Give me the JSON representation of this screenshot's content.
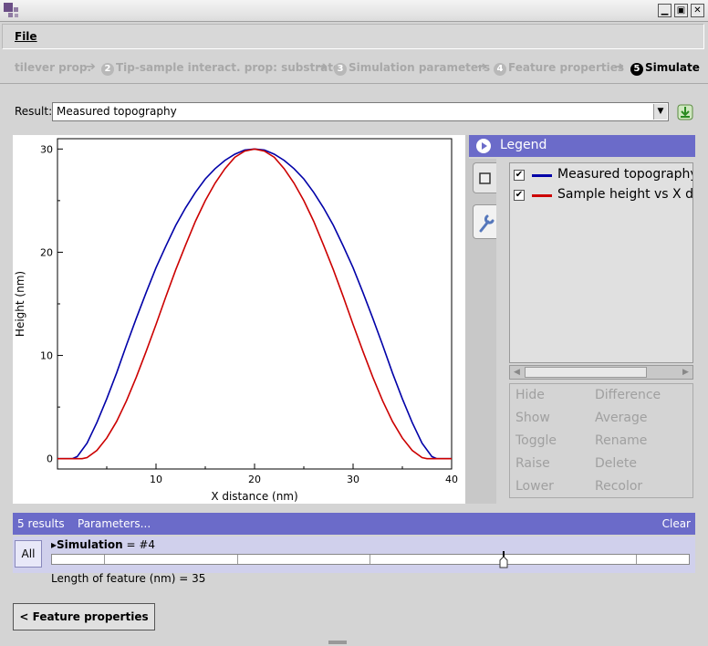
{
  "window": {
    "buttons": [
      {
        "icon": "minimize-icon",
        "glyph": "▁"
      },
      {
        "icon": "maximize-icon",
        "glyph": "▣"
      },
      {
        "icon": "close-icon",
        "glyph": "✕"
      }
    ]
  },
  "menu": {
    "file": "File"
  },
  "wizard": {
    "steps": [
      {
        "label": "tilever prop.",
        "num": ""
      },
      {
        "label": "Tip-sample interact. prop: substrate",
        "num": "2"
      },
      {
        "label": "Simulation parameters",
        "num": "3"
      },
      {
        "label": "Feature properties",
        "num": "4"
      },
      {
        "label": "Simulate",
        "num": "5"
      }
    ],
    "arrow": "➔"
  },
  "result": {
    "label": "Result:",
    "selected": "Measured topography"
  },
  "chart_data": {
    "type": "line",
    "xlabel": "X distance (nm)",
    "ylabel": "Height (nm)",
    "xlim": [
      0,
      40
    ],
    "ylim": [
      -1,
      31
    ],
    "xticks": [
      10,
      20,
      30,
      40
    ],
    "yticks": [
      0,
      10,
      20,
      30
    ],
    "series": [
      {
        "name": "Measured topography",
        "color": "#0000a8",
        "x": [
          0,
          1.5,
          2,
          3,
          4,
          5,
          6,
          7,
          8,
          9,
          10,
          11,
          12,
          13,
          14,
          15,
          16,
          17,
          18,
          19,
          20,
          21,
          22,
          23,
          24,
          25,
          26,
          27,
          28,
          29,
          30,
          31,
          32,
          33,
          34,
          35,
          36,
          37,
          38,
          38.5,
          40
        ],
        "y": [
          0,
          0,
          0.2,
          1.5,
          3.5,
          5.8,
          8.3,
          11.0,
          13.6,
          16.1,
          18.5,
          20.6,
          22.6,
          24.3,
          25.8,
          27.1,
          28.1,
          28.9,
          29.5,
          29.9,
          30,
          29.9,
          29.5,
          28.9,
          28.1,
          27.1,
          25.8,
          24.3,
          22.6,
          20.6,
          18.5,
          16.1,
          13.6,
          11.0,
          8.3,
          5.8,
          3.5,
          1.5,
          0.2,
          0,
          0
        ]
      },
      {
        "name": "Sample height vs X dis",
        "color": "#cc0000",
        "x": [
          0,
          2.5,
          3,
          4,
          5,
          6,
          7,
          8,
          9,
          10,
          11,
          12,
          13,
          14,
          15,
          16,
          17,
          18,
          19,
          20,
          21,
          22,
          23,
          24,
          25,
          26,
          27,
          28,
          29,
          30,
          31,
          32,
          33,
          34,
          35,
          36,
          37,
          37.5,
          40
        ],
        "y": [
          0,
          0,
          0.1,
          0.8,
          2.0,
          3.6,
          5.6,
          7.9,
          10.4,
          13.0,
          15.7,
          18.3,
          20.7,
          23.0,
          25.0,
          26.7,
          28.1,
          29.2,
          29.8,
          30,
          29.8,
          29.2,
          28.1,
          26.7,
          25.0,
          23.0,
          20.7,
          18.3,
          15.7,
          13.0,
          10.4,
          7.9,
          5.6,
          3.6,
          2.0,
          0.8,
          0.1,
          0,
          0
        ]
      }
    ]
  },
  "legend": {
    "title": "Legend",
    "items": [
      {
        "label": "Measured topography",
        "checked": "✔",
        "color": "#0000a8"
      },
      {
        "label": "Sample height vs X dis",
        "checked": "✔",
        "color": "#cc0000"
      }
    ],
    "actions": [
      "Hide",
      "Difference",
      "Show",
      "Average",
      "Toggle",
      "Rename",
      "Raise",
      "Delete",
      "Lower",
      "Recolor"
    ]
  },
  "results_bar": {
    "count": "5 results",
    "parameters": "Parameters...",
    "clear": "Clear"
  },
  "simulation": {
    "all": "All",
    "label_bold": "Simulation",
    "label_rest": " = #4",
    "selected_index_fraction": 0.709,
    "length": "Length of feature (nm) = 35"
  },
  "footer": {
    "back": "< Feature properties"
  }
}
